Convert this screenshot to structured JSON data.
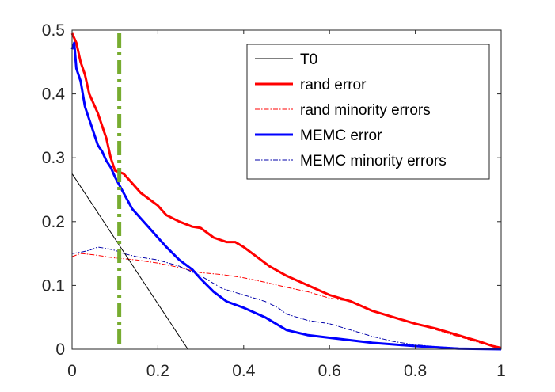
{
  "chart_data": {
    "type": "line",
    "title": "",
    "xlabel": "",
    "ylabel": "",
    "xlim": [
      0,
      1
    ],
    "ylim": [
      0,
      0.5
    ],
    "xticks": [
      0,
      0.2,
      0.4,
      0.6,
      0.8,
      1
    ],
    "xtick_labels": [
      "0",
      "0.2",
      "0.4",
      "0.6",
      "0.8",
      "1"
    ],
    "yticks": [
      0,
      0.1,
      0.2,
      0.3,
      0.4,
      0.5
    ],
    "ytick_labels": [
      "0",
      "0.1",
      "0.2",
      "0.3",
      "0.4",
      "0.5"
    ],
    "grid": false,
    "legend_position": "top-right",
    "series": [
      {
        "name": "T0",
        "color": "#000000",
        "style": "solid-thin",
        "x": [
          0,
          0.27
        ],
        "y": [
          0.275,
          0
        ]
      },
      {
        "name": "rand error",
        "color": "#ff0000",
        "style": "solid-thick",
        "x": [
          0,
          0.01,
          0.02,
          0.03,
          0.04,
          0.05,
          0.06,
          0.07,
          0.08,
          0.09,
          0.1,
          0.12,
          0.14,
          0.16,
          0.18,
          0.2,
          0.22,
          0.25,
          0.28,
          0.3,
          0.33,
          0.36,
          0.38,
          0.4,
          0.43,
          0.46,
          0.5,
          0.55,
          0.6,
          0.65,
          0.7,
          0.75,
          0.8,
          0.85,
          0.9,
          0.95,
          0.98,
          1
        ],
        "y": [
          0.495,
          0.48,
          0.45,
          0.43,
          0.4,
          0.385,
          0.37,
          0.35,
          0.33,
          0.3,
          0.28,
          0.275,
          0.26,
          0.245,
          0.235,
          0.225,
          0.21,
          0.2,
          0.192,
          0.19,
          0.175,
          0.168,
          0.168,
          0.16,
          0.145,
          0.13,
          0.115,
          0.1,
          0.085,
          0.075,
          0.06,
          0.05,
          0.04,
          0.032,
          0.022,
          0.012,
          0.005,
          0.002
        ]
      },
      {
        "name": "rand minority errors",
        "color": "#ff0000",
        "style": "dashdot-thin",
        "x": [
          0,
          0.02,
          0.05,
          0.1,
          0.15,
          0.2,
          0.25,
          0.3,
          0.35,
          0.4,
          0.45,
          0.5,
          0.55,
          0.6,
          0.65,
          0.7,
          0.75,
          0.8,
          0.85,
          0.9,
          0.95,
          1
        ],
        "y": [
          0.145,
          0.15,
          0.148,
          0.143,
          0.14,
          0.135,
          0.128,
          0.12,
          0.117,
          0.112,
          0.105,
          0.097,
          0.09,
          0.08,
          0.075,
          0.06,
          0.05,
          0.04,
          0.03,
          0.02,
          0.01,
          0.002
        ]
      },
      {
        "name": "MEMC error",
        "color": "#0000ff",
        "style": "solid-thick",
        "x": [
          0,
          0.005,
          0.01,
          0.02,
          0.03,
          0.04,
          0.05,
          0.06,
          0.07,
          0.08,
          0.09,
          0.1,
          0.12,
          0.14,
          0.16,
          0.18,
          0.2,
          0.22,
          0.25,
          0.28,
          0.3,
          0.33,
          0.36,
          0.4,
          0.45,
          0.5,
          0.55,
          0.6,
          0.7,
          0.8,
          0.85,
          0.9,
          1
        ],
        "y": [
          0.47,
          0.48,
          0.44,
          0.42,
          0.38,
          0.36,
          0.34,
          0.32,
          0.31,
          0.295,
          0.285,
          0.27,
          0.245,
          0.22,
          0.205,
          0.19,
          0.175,
          0.16,
          0.14,
          0.125,
          0.11,
          0.09,
          0.075,
          0.065,
          0.05,
          0.03,
          0.022,
          0.018,
          0.01,
          0.005,
          0.003,
          0.001,
          0
        ]
      },
      {
        "name": "MEMC minority errors",
        "color": "#0000aa",
        "style": "dashdot-thin",
        "x": [
          0,
          0.02,
          0.04,
          0.06,
          0.08,
          0.1,
          0.12,
          0.15,
          0.2,
          0.25,
          0.3,
          0.35,
          0.4,
          0.45,
          0.48,
          0.5,
          0.55,
          0.6,
          0.65,
          0.7,
          0.75,
          0.8,
          0.85,
          0.9,
          0.95,
          1
        ],
        "y": [
          0.15,
          0.152,
          0.155,
          0.16,
          0.158,
          0.155,
          0.15,
          0.145,
          0.14,
          0.13,
          0.115,
          0.095,
          0.085,
          0.075,
          0.065,
          0.055,
          0.045,
          0.04,
          0.03,
          0.02,
          0.012,
          0.007,
          0.004,
          0.002,
          0.001,
          0
        ]
      }
    ],
    "vertical_line": {
      "x": 0.11,
      "color": "#77ac30",
      "style": "dashdot-thick"
    }
  }
}
